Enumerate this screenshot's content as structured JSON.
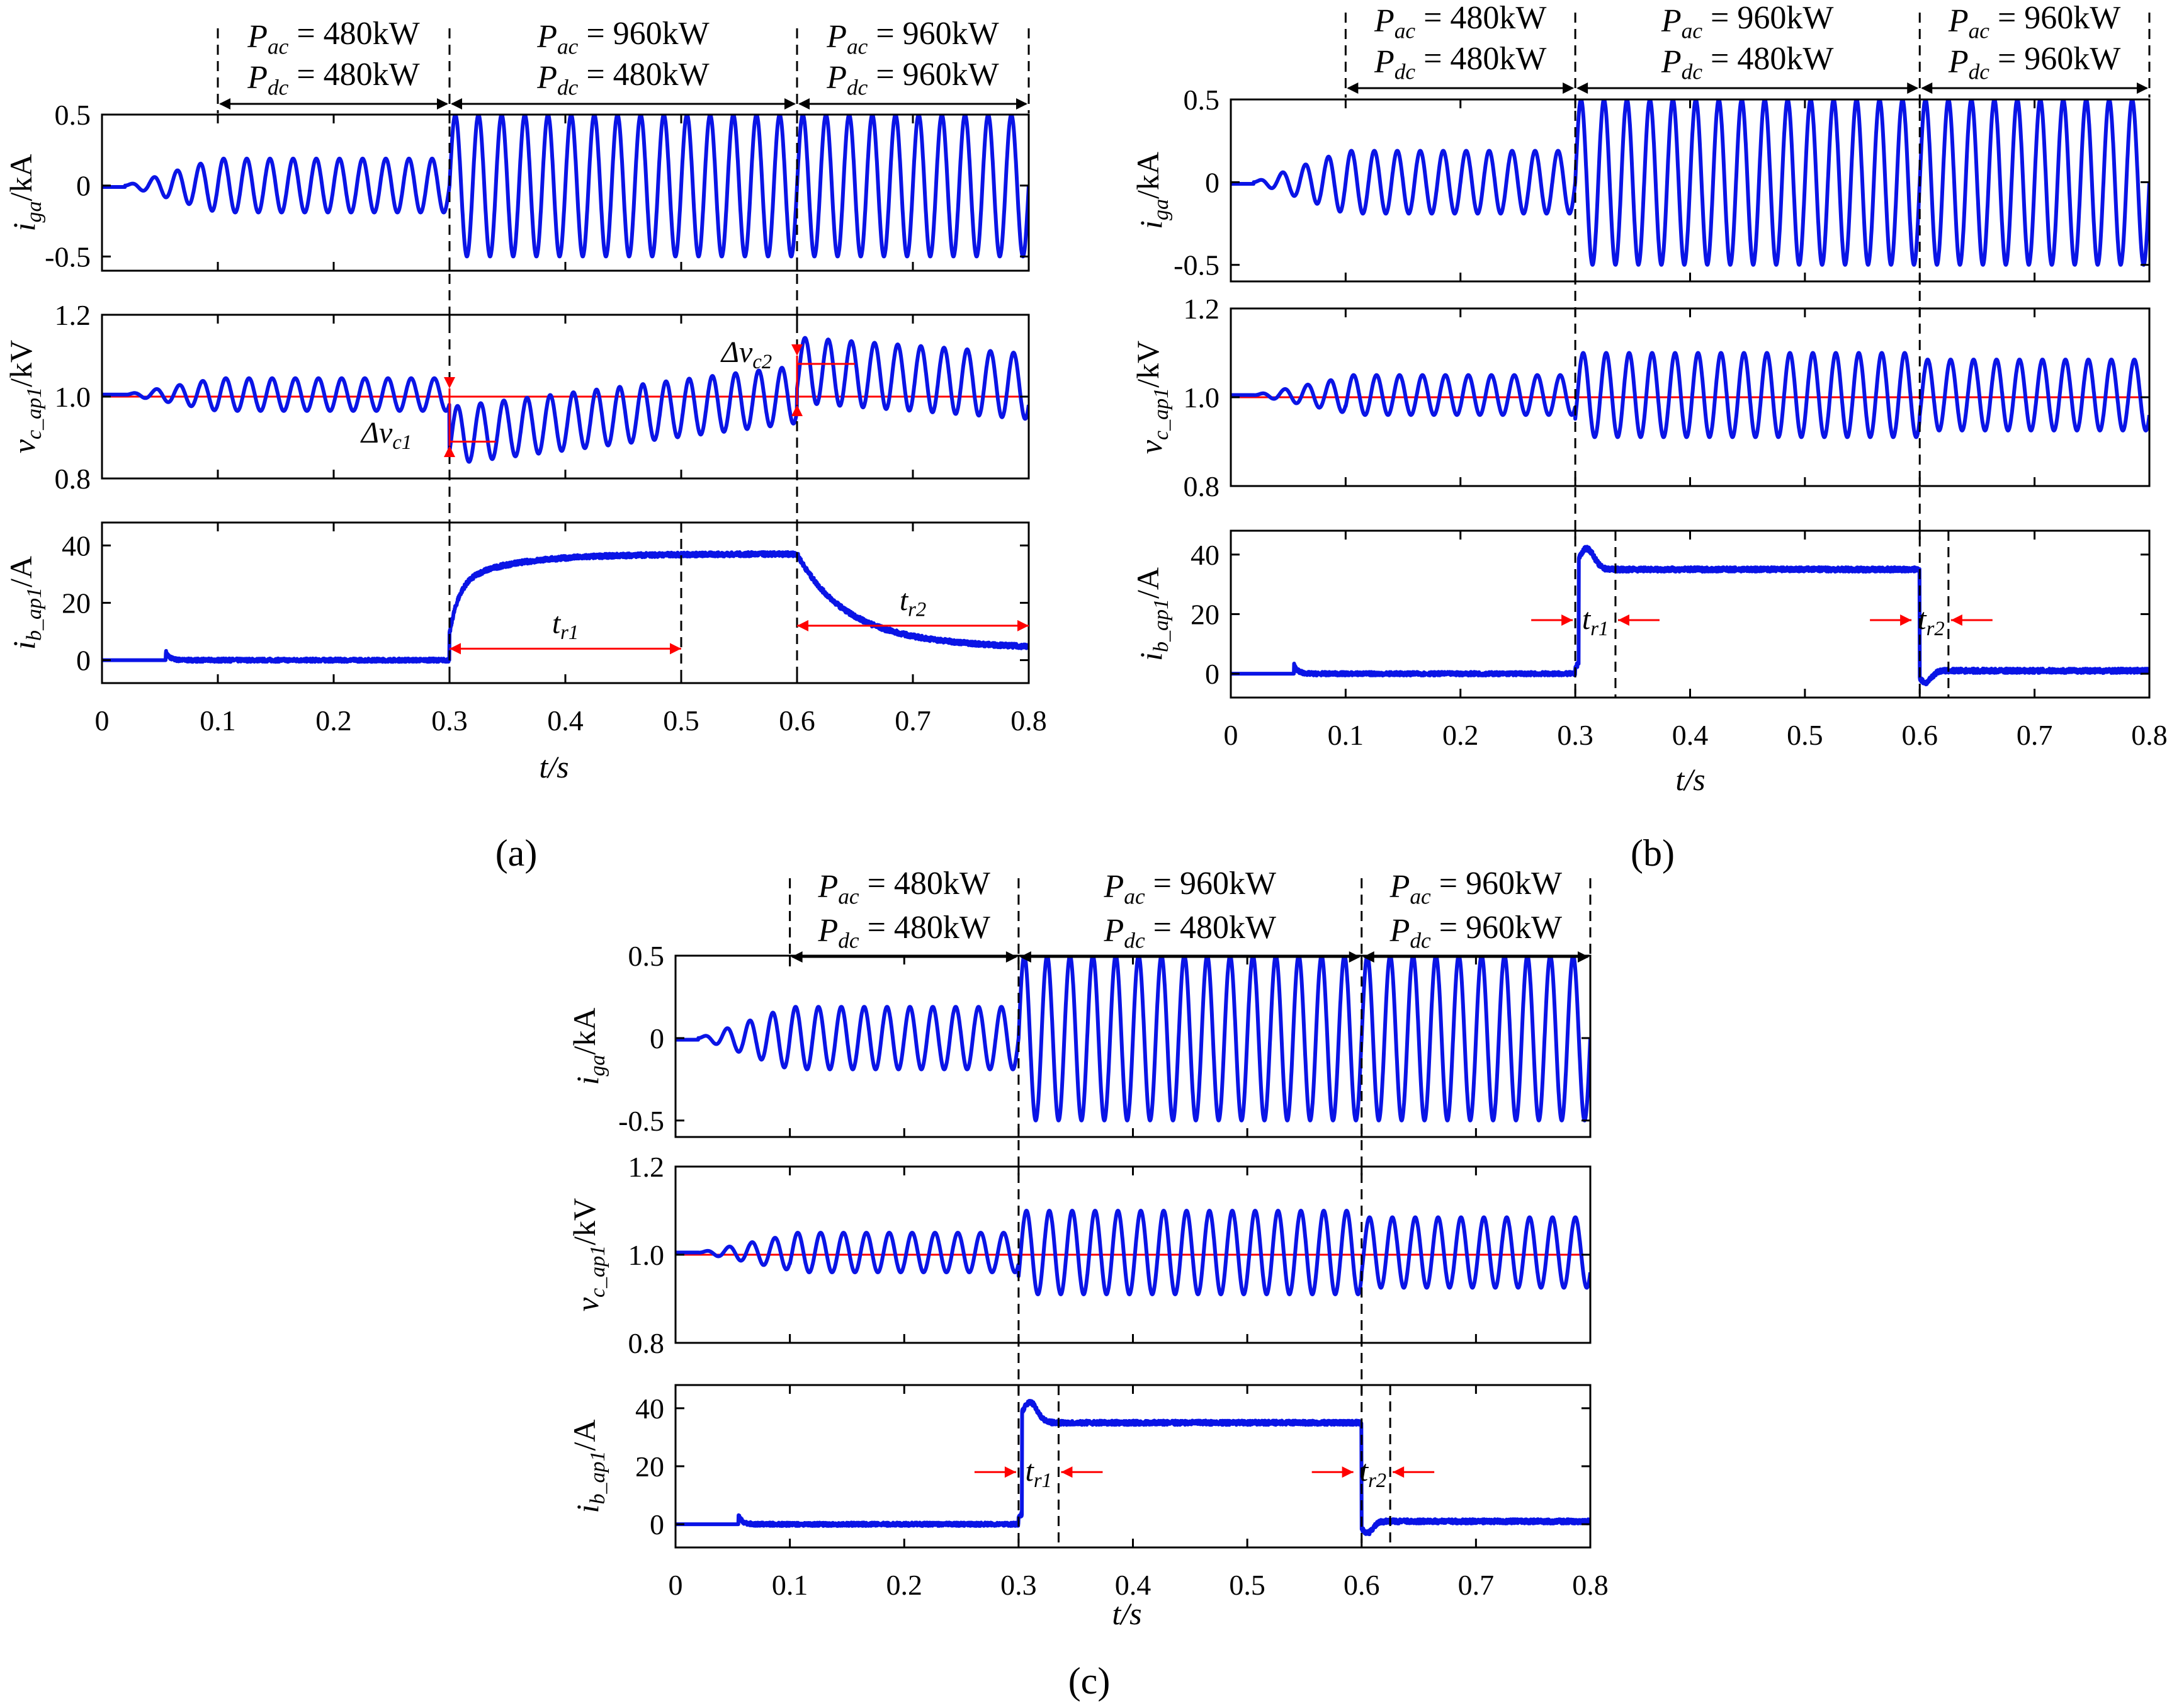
{
  "chart_data": [
    {
      "panel": "a",
      "type": "line",
      "panel_label": "(a)",
      "x_range": [
        0,
        0.8
      ],
      "xlabel": "t/s",
      "xticks": [
        "0",
        "0.1",
        "0.2",
        "0.3",
        "0.4",
        "0.5",
        "0.6",
        "0.7",
        "0.8"
      ],
      "power_intervals": [
        {
          "t_start": 0.1,
          "t_end": 0.3,
          "Pac": "480kW",
          "Pdc": "480kW"
        },
        {
          "t_start": 0.3,
          "t_end": 0.6,
          "Pac": "960kW",
          "Pdc": "480kW"
        },
        {
          "t_start": 0.6,
          "t_end": 0.8,
          "Pac": "960kW",
          "Pdc": "960kW"
        }
      ],
      "subplots": [
        {
          "id": "iga",
          "ylabel": "i_ga/kA",
          "ylim": [
            -0.6,
            0.5
          ],
          "yticks": [
            "0.5",
            "0",
            "-0.5"
          ],
          "amplitudes": [
            0.19,
            0.5,
            0.5
          ]
        },
        {
          "id": "vc",
          "ylabel": "v_c_ap1/kV",
          "ylim": [
            0.8,
            1.2
          ],
          "yticks": [
            "1.2",
            "1.0",
            "0.8"
          ],
          "reference": 1.0
        },
        {
          "id": "ib",
          "ylabel": "i_b_ap1/A",
          "ylim": [
            -8,
            48
          ],
          "yticks": [
            "40",
            "20",
            "0"
          ],
          "levels": [
            0,
            37,
            3
          ]
        }
      ],
      "annotations": [
        "Δv_c1",
        "Δv_c2",
        "t_r1",
        "t_r2"
      ]
    },
    {
      "panel": "b",
      "type": "line",
      "panel_label": "(b)",
      "x_range": [
        0,
        0.8
      ],
      "xlabel": "t/s",
      "xticks": [
        "0",
        "0.1",
        "0.2",
        "0.3",
        "0.4",
        "0.5",
        "0.6",
        "0.7",
        "0.8"
      ],
      "power_intervals": [
        {
          "t_start": 0.1,
          "t_end": 0.3,
          "Pac": "480kW",
          "Pdc": "480kW"
        },
        {
          "t_start": 0.3,
          "t_end": 0.6,
          "Pac": "960kW",
          "Pdc": "480kW"
        },
        {
          "t_start": 0.6,
          "t_end": 0.8,
          "Pac": "960kW",
          "Pdc": "960kW"
        }
      ],
      "subplots": [
        {
          "id": "iga",
          "ylabel": "i_ga/kA",
          "ylim": [
            -0.6,
            0.5
          ],
          "yticks": [
            "0.5",
            "0",
            "-0.5"
          ],
          "amplitudes": [
            0.19,
            0.5,
            0.5
          ]
        },
        {
          "id": "vc",
          "ylabel": "v_c_ap1/kV",
          "ylim": [
            0.8,
            1.2
          ],
          "yticks": [
            "1.2",
            "1.0",
            "0.8"
          ],
          "reference": 1.0
        },
        {
          "id": "ib",
          "ylabel": "i_b_ap1/A",
          "ylim": [
            -8,
            48
          ],
          "yticks": [
            "40",
            "20",
            "0"
          ],
          "levels": [
            0,
            35,
            1
          ]
        }
      ],
      "annotations": [
        "t_r1",
        "t_r2"
      ]
    },
    {
      "panel": "c",
      "type": "line",
      "panel_label": "(c)",
      "x_range": [
        0,
        0.8
      ],
      "xlabel": "t/s",
      "xticks": [
        "0",
        "0.1",
        "0.2",
        "0.3",
        "0.4",
        "0.5",
        "0.6",
        "0.7",
        "0.8"
      ],
      "power_intervals": [
        {
          "t_start": 0.1,
          "t_end": 0.3,
          "Pac": "480kW",
          "Pdc": "480kW"
        },
        {
          "t_start": 0.3,
          "t_end": 0.6,
          "Pac": "960kW",
          "Pdc": "480kW"
        },
        {
          "t_start": 0.6,
          "t_end": 0.8,
          "Pac": "960kW",
          "Pdc": "960kW"
        }
      ],
      "subplots": [
        {
          "id": "iga",
          "ylabel": "i_ga/kA",
          "ylim": [
            -0.6,
            0.5
          ],
          "yticks": [
            "0.5",
            "0",
            "-0.5"
          ],
          "amplitudes": [
            0.19,
            0.5,
            0.5
          ]
        },
        {
          "id": "vc",
          "ylabel": "v_c_ap1/kV",
          "ylim": [
            0.8,
            1.2
          ],
          "yticks": [
            "1.2",
            "1.0",
            "0.8"
          ],
          "reference": 1.0
        },
        {
          "id": "ib",
          "ylabel": "i_b_ap1/A",
          "ylim": [
            -8,
            48
          ],
          "yticks": [
            "40",
            "20",
            "0"
          ],
          "levels": [
            0,
            35,
            1
          ]
        }
      ],
      "annotations": [
        "t_r1",
        "t_r2"
      ]
    }
  ],
  "colors": {
    "waveform": "#0a14e6",
    "reference": "#ff0000",
    "axis": "#000000"
  }
}
